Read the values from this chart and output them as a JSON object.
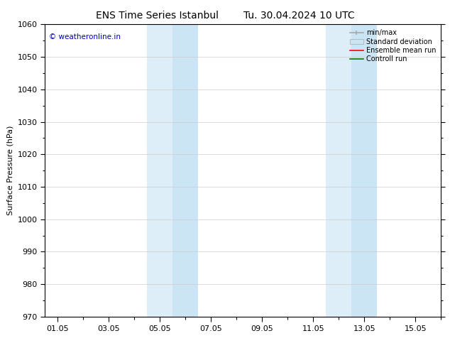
{
  "title_left": "ENS Time Series Istanbul",
  "title_right": "Tu. 30.04.2024 10 UTC",
  "ylabel": "Surface Pressure (hPa)",
  "ylim": [
    970,
    1060
  ],
  "yticks": [
    970,
    980,
    990,
    1000,
    1010,
    1020,
    1030,
    1040,
    1050,
    1060
  ],
  "xtick_labels": [
    "01.05",
    "03.05",
    "05.05",
    "07.05",
    "09.05",
    "11.05",
    "13.05",
    "15.05"
  ],
  "xtick_positions": [
    0,
    2,
    4,
    6,
    8,
    10,
    12,
    14
  ],
  "xlim": [
    -0.5,
    15.0
  ],
  "shaded_regions": [
    {
      "start": 3.5,
      "end": 4.5,
      "color": "#ddeef8"
    },
    {
      "start": 4.5,
      "end": 5.5,
      "color": "#cce5f5"
    },
    {
      "start": 10.5,
      "end": 11.5,
      "color": "#ddeef8"
    },
    {
      "start": 11.5,
      "end": 12.5,
      "color": "#cce5f5"
    }
  ],
  "watermark_text": "© weatheronline.in",
  "watermark_color": "#0000bb",
  "watermark_fontsize": 7.5,
  "background_color": "#ffffff",
  "grid_color": "#cccccc",
  "title_fontsize": 10,
  "axis_label_fontsize": 8,
  "tick_fontsize": 8,
  "legend_fontsize": 7,
  "minmax_color": "#aaaaaa",
  "std_facecolor": "#cce5f5",
  "std_edgecolor": "#aaaaaa",
  "ensemble_color": "#ff0000",
  "control_color": "#008000"
}
